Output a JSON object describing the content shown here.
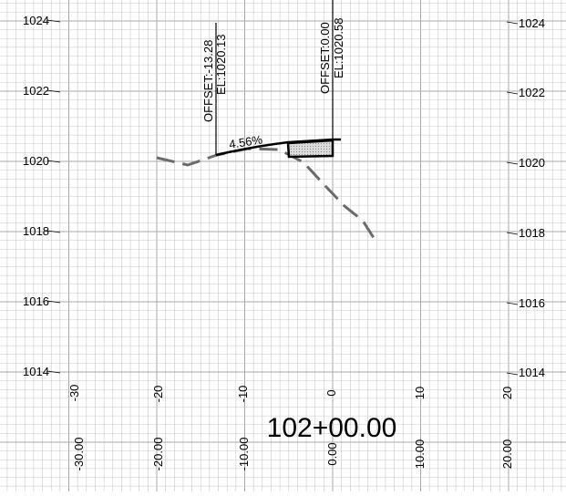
{
  "station_label": "102+00.00",
  "elevation_labels_left": [
    "1024",
    "1022",
    "1020",
    "1018",
    "1016",
    "1014"
  ],
  "elevation_labels_right": [
    "1024",
    "1022",
    "1020",
    "1018",
    "1016",
    "1014"
  ],
  "offset_labels_upper": [
    "-30",
    "-20",
    "-10",
    "0",
    "10",
    "20"
  ],
  "offset_labels_lower": [
    "-30.00",
    "-20.00",
    "-10.00",
    "0.00",
    "10.00",
    "20.00"
  ],
  "annotations": {
    "left_point": {
      "offset": "OFFSET:-13.28",
      "elevation": "EL:1020.13"
    },
    "right_point": {
      "offset": "OFFSET:0.00",
      "elevation": "EL:1020.58"
    },
    "slope": "4.56%"
  },
  "colors": {
    "existing_ground": "#6b6b6b",
    "design_surface": "#000000",
    "fill": "#bdbdbd"
  }
}
